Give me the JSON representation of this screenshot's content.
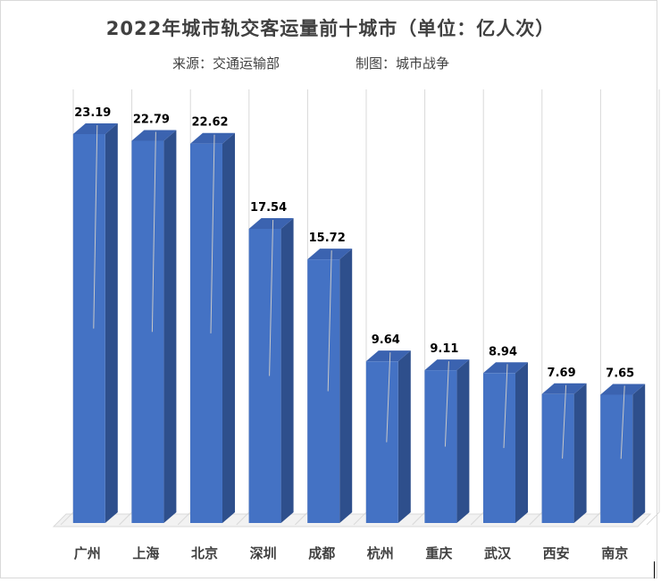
{
  "chart_data": {
    "type": "bar",
    "title": "2022年城市轨交客运量前十城市（单位：亿人次）",
    "subtitle": {
      "source": "来源：交通运输部",
      "maker": "制图：城市战争"
    },
    "categories": [
      "广州",
      "上海",
      "北京",
      "深圳",
      "成都",
      "杭州",
      "重庆",
      "武汉",
      "西安",
      "南京"
    ],
    "values": [
      23.19,
      22.79,
      22.62,
      17.54,
      15.72,
      9.64,
      9.11,
      8.94,
      7.69,
      7.65
    ],
    "value_labels": [
      "23.19",
      "22.79",
      "22.62",
      "17.54",
      "15.72",
      "9.64",
      "9.11",
      "8.94",
      "7.69",
      "7.65"
    ],
    "xlabel": "",
    "ylabel": "",
    "ylim": [
      0,
      25
    ],
    "grid": "vertical",
    "legend": "none",
    "style": "3d-column",
    "colors": {
      "bar_front": "#4472c4",
      "bar_side": "#2e4f8c",
      "bar_top": "#3b63b0",
      "grid": "#d9d9d9",
      "text": "#000000",
      "title": "#404040"
    }
  }
}
